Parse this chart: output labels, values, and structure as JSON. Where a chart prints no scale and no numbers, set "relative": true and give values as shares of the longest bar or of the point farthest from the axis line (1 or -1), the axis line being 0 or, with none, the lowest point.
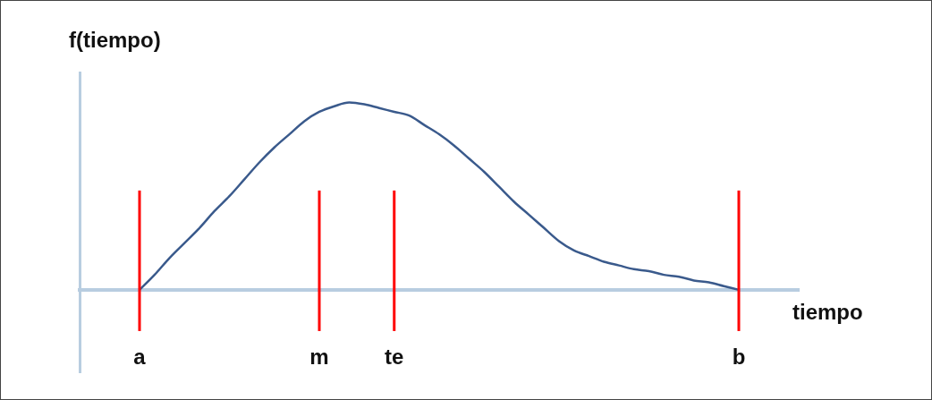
{
  "chart_data": {
    "type": "line",
    "xlabel": "tiempo",
    "ylabel": "f(tiempo)",
    "relative": true,
    "tick_labels": "x",
    "grid": false,
    "legend": false,
    "marker": "none",
    "line_style": "solid",
    "categories": [
      null,
      null,
      null,
      null,
      "a",
      null,
      null,
      null,
      null,
      null,
      null,
      null,
      null,
      null,
      null,
      null,
      "m",
      null,
      null,
      null,
      null,
      "te",
      null,
      null,
      null,
      null,
      null,
      null,
      null,
      null,
      null,
      null,
      null,
      null,
      null,
      null,
      null,
      null,
      null,
      null,
      null,
      null,
      null,
      null,
      "b",
      null,
      null,
      null,
      null
    ],
    "series": [
      {
        "color": "#3a5a8c",
        "values": [
          null,
          null,
          null,
          null,
          0,
          0.08,
          0.17,
          0.25,
          0.33,
          0.42,
          0.5,
          0.59,
          0.68,
          0.76,
          0.83,
          0.9,
          0.95,
          0.98,
          1,
          0.99,
          0.97,
          0.95,
          0.93,
          0.88,
          0.83,
          0.77,
          0.7,
          0.63,
          0.55,
          0.47,
          0.4,
          0.33,
          0.26,
          0.21,
          0.18,
          0.15,
          0.13,
          0.11,
          0.1,
          0.08,
          0.07,
          0.05,
          0.04,
          0.02,
          0,
          null,
          null,
          null,
          null
        ]
      }
    ],
    "ref_lines": [
      {
        "axis": "x",
        "value": "a",
        "color": "#ff0000"
      },
      {
        "axis": "x",
        "value": "m",
        "color": "#ff0000"
      },
      {
        "axis": "x",
        "value": "te",
        "color": "#ff0000"
      },
      {
        "axis": "x",
        "value": "b",
        "color": "#ff0000"
      }
    ]
  }
}
